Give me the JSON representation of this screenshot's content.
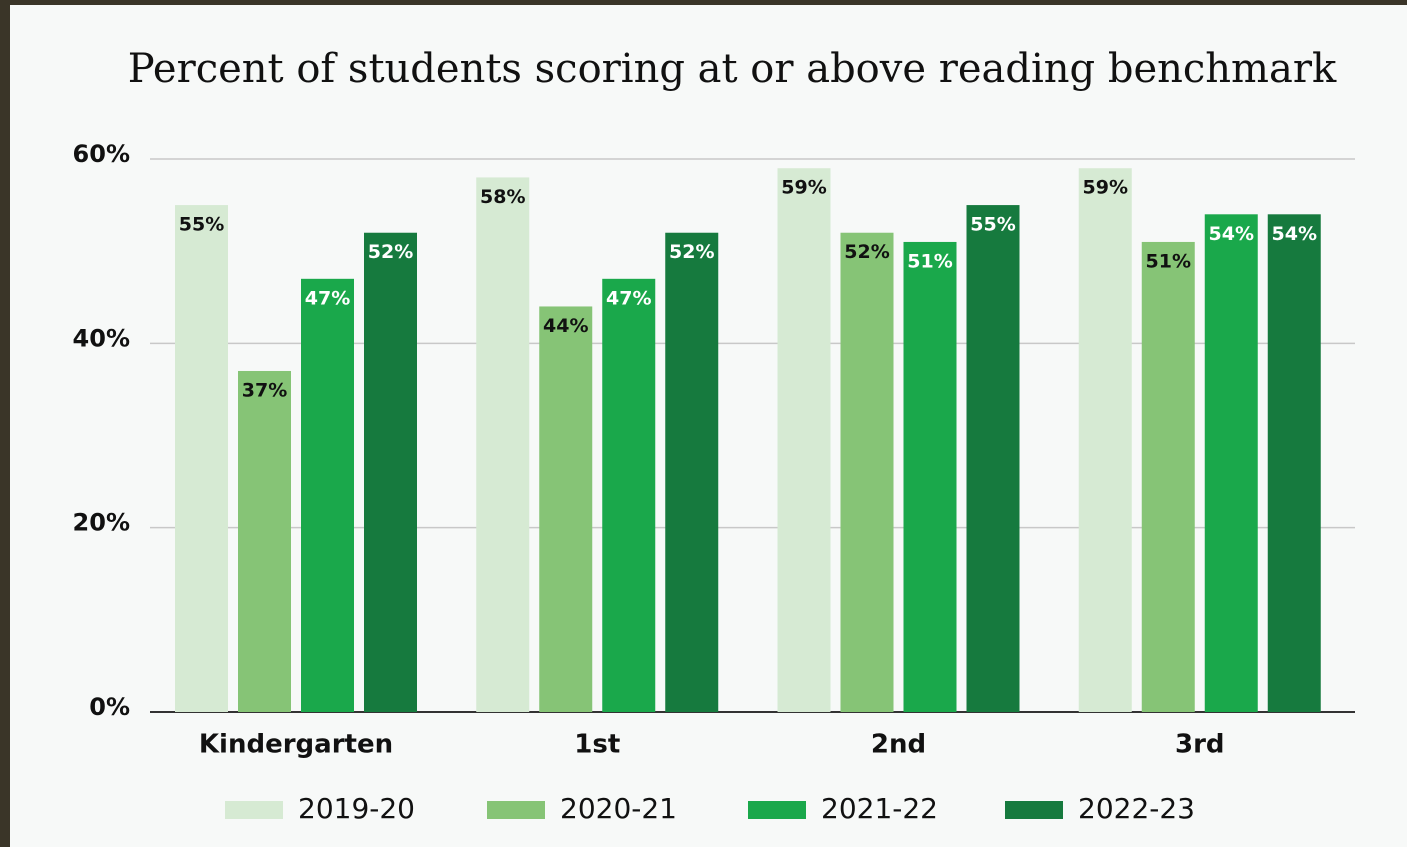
{
  "chart_data": {
    "type": "bar",
    "title": "Percent of students scoring at or above reading benchmark",
    "categories": [
      "Kindergarten",
      "1st",
      "2nd",
      "3rd"
    ],
    "series": [
      {
        "name": "2019-20",
        "color": "#d6ead3",
        "values": [
          55,
          58,
          59,
          59
        ],
        "value_labels": [
          "55%",
          "58%",
          "59%",
          "59%"
        ]
      },
      {
        "name": "2020-21",
        "color": "#86c476",
        "values": [
          37,
          44,
          52,
          51
        ],
        "value_labels": [
          "37%",
          "44%",
          "52%",
          "51%"
        ]
      },
      {
        "name": "2021-22",
        "color": "#1aa84b",
        "values": [
          47,
          47,
          51,
          54
        ],
        "value_labels": [
          "47%",
          "47%",
          "51%",
          "54%"
        ]
      },
      {
        "name": "2022-23",
        "color": "#167a3e",
        "values": [
          52,
          52,
          55,
          54
        ],
        "value_labels": [
          "52%",
          "52%",
          "55%",
          "54%"
        ]
      }
    ],
    "ylim": [
      0,
      60
    ],
    "yticks": [
      {
        "value": 0,
        "label": "0%"
      },
      {
        "value": 20,
        "label": "20%"
      },
      {
        "value": 40,
        "label": "40%"
      },
      {
        "value": 60,
        "label": "60%"
      }
    ],
    "grid": true,
    "legend": "bottom"
  }
}
